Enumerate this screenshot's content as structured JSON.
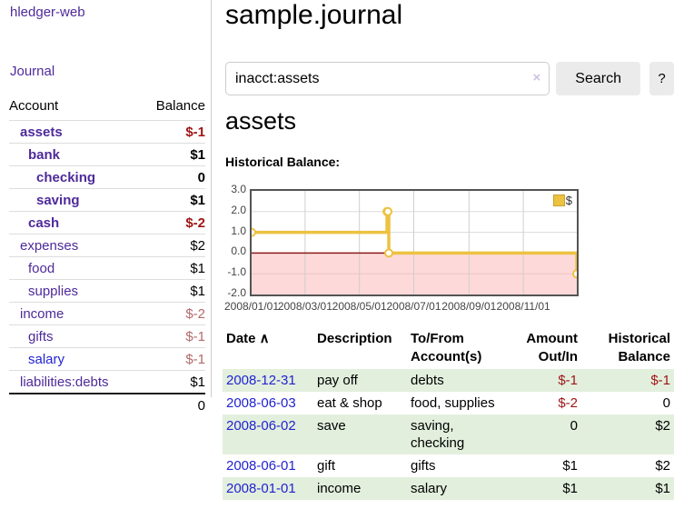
{
  "palette": {
    "link_purple": "#4e2a9a",
    "link_blue": "#2323d1",
    "negative": "#9e1414",
    "muted_negative": "#b36a6a",
    "row_green": "#e2efdd",
    "series_gold": "#edc240"
  },
  "app": {
    "brand": "hledger-web",
    "nav_journal": "Journal"
  },
  "sidebar": {
    "header": {
      "account": "Account",
      "balance": "Balance"
    },
    "accounts": [
      {
        "name": "assets",
        "depth": 1,
        "bold": true,
        "balance": "$-1",
        "tone": "neg"
      },
      {
        "name": "bank",
        "depth": 2,
        "bold": true,
        "balance": "$1"
      },
      {
        "name": "checking",
        "depth": 3,
        "bold": true,
        "balance": "0"
      },
      {
        "name": "saving",
        "depth": 3,
        "bold": true,
        "balance": "$1"
      },
      {
        "name": "cash",
        "depth": 2,
        "bold": true,
        "balance": "$-2",
        "tone": "neg"
      },
      {
        "name": "expenses",
        "depth": 1,
        "bold": false,
        "balance": "$2"
      },
      {
        "name": "food",
        "depth": 2,
        "bold": false,
        "balance": "$1"
      },
      {
        "name": "supplies",
        "depth": 2,
        "bold": false,
        "balance": "$1"
      },
      {
        "name": "income",
        "depth": 1,
        "bold": false,
        "balance": "$-2",
        "tone": "mneg"
      },
      {
        "name": "gifts",
        "depth": 2,
        "bold": false,
        "balance": "$-1",
        "tone": "mneg"
      },
      {
        "name": "salary",
        "depth": 2,
        "bold": false,
        "balance": "$-1",
        "tone": "mneg",
        "blue": true
      },
      {
        "name": "liabilities:debts",
        "depth": 1,
        "bold": false,
        "balance": "$1"
      }
    ],
    "total": "0"
  },
  "header": {
    "title": "sample.journal"
  },
  "search": {
    "value": "inacct:assets",
    "clear_icon": "×",
    "button_label": "Search",
    "help_label": "?"
  },
  "account_page": {
    "heading": "assets",
    "chart_label": "Historical Balance:"
  },
  "chart_data": {
    "type": "line",
    "step": true,
    "title": "Historical Balance:",
    "series": [
      {
        "name": "$",
        "color": "#edc240",
        "points": [
          [
            "2008-01-01",
            1
          ],
          [
            "2008-06-01",
            2
          ],
          [
            "2008-06-02",
            2
          ],
          [
            "2008-06-03",
            0
          ],
          [
            "2008-12-31",
            -1
          ]
        ]
      }
    ],
    "x_range": [
      "2008-01-01",
      "2008-12-31"
    ],
    "x_ticks": [
      {
        "date": "2008-01-01",
        "label": "2008/01/01"
      },
      {
        "date": "2008-03-01",
        "label": "2008/03/01"
      },
      {
        "date": "2008-05-01",
        "label": "2008/05/01"
      },
      {
        "date": "2008-07-01",
        "label": "2008/07/01"
      },
      {
        "date": "2008-09-01",
        "label": "2008/09/01"
      },
      {
        "date": "2008-11-01",
        "label": "2008/11/01"
      }
    ],
    "y_ticks": [
      {
        "value": 3,
        "label": "3.0"
      },
      {
        "value": 2,
        "label": "2.0"
      },
      {
        "value": 1,
        "label": "1.0"
      },
      {
        "value": 0,
        "label": "0.0"
      },
      {
        "value": -1,
        "label": "-1.0"
      },
      {
        "value": -2,
        "label": "-2.0"
      }
    ],
    "ylim": [
      -2,
      3
    ],
    "grid": true,
    "zero_line_color": "#8b1a1a",
    "negative_region_color": "rgba(250,170,170,0.45)",
    "legend": {
      "label": "$",
      "position": "top-right"
    }
  },
  "register": {
    "columns": [
      {
        "label": "Date",
        "sort_icon": "∧"
      },
      {
        "label": "Description"
      },
      {
        "label": "To/From Account(s)"
      },
      {
        "label": "Amount Out/In",
        "align": "right"
      },
      {
        "label": "Historical Balance",
        "align": "right"
      }
    ],
    "rows": [
      {
        "date": "2008-12-31",
        "description": "pay off",
        "accounts": "debts",
        "amount": "$-1",
        "amount_tone": "neg",
        "balance": "$-1",
        "balance_tone": "neg"
      },
      {
        "date": "2008-06-03",
        "description": "eat & shop",
        "accounts": "food, supplies",
        "amount": "$-2",
        "amount_tone": "neg",
        "balance": "0"
      },
      {
        "date": "2008-06-02",
        "description": "save",
        "accounts": "saving, checking",
        "amount": "0",
        "balance": "$2"
      },
      {
        "date": "2008-06-01",
        "description": "gift",
        "accounts": "gifts",
        "amount": "$1",
        "balance": "$2"
      },
      {
        "date": "2008-01-01",
        "description": "income",
        "accounts": "salary",
        "amount": "$1",
        "balance": "$1"
      }
    ]
  }
}
